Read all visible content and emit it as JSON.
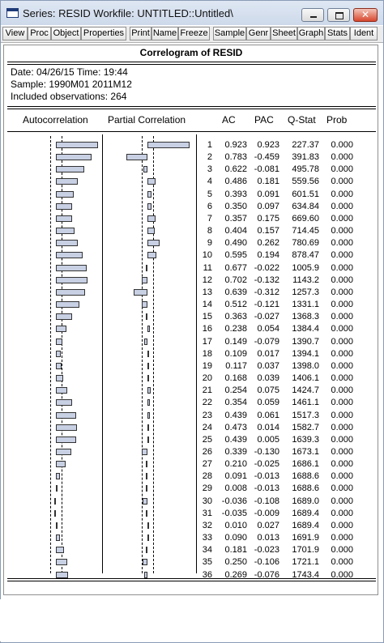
{
  "window": {
    "title": "Series: RESID    Workfile: UNTITLED::Untitled\\"
  },
  "toolbar": [
    "View",
    "Proc",
    "Object",
    "Properties",
    "Print",
    "Name",
    "Freeze",
    "Sample",
    "Genr",
    "Sheet",
    "Graph",
    "Stats",
    "Ident"
  ],
  "header": {
    "title": "Correlogram of RESID",
    "date_line": "Date: 04/26/15   Time: 19:44",
    "sample_line": "Sample: 1990M01 2011M12",
    "obs_line": "Included observations: 264"
  },
  "columns": {
    "ac_plot": "Autocorrelation",
    "pac_plot": "Partial Correlation",
    "ac": "AC",
    "pac": "PAC",
    "qstat": "Q-Stat",
    "prob": "Prob"
  },
  "rows": [
    {
      "lag": "1",
      "ac": "0.923",
      "pac": "0.923",
      "q": "227.37",
      "prob": "0.000"
    },
    {
      "lag": "2",
      "ac": "0.783",
      "pac": "-0.459",
      "q": "391.83",
      "prob": "0.000"
    },
    {
      "lag": "3",
      "ac": "0.622",
      "pac": "-0.081",
      "q": "495.78",
      "prob": "0.000"
    },
    {
      "lag": "4",
      "ac": "0.486",
      "pac": "0.181",
      "q": "559.56",
      "prob": "0.000"
    },
    {
      "lag": "5",
      "ac": "0.393",
      "pac": "0.091",
      "q": "601.51",
      "prob": "0.000"
    },
    {
      "lag": "6",
      "ac": "0.350",
      "pac": "0.097",
      "q": "634.84",
      "prob": "0.000"
    },
    {
      "lag": "7",
      "ac": "0.357",
      "pac": "0.175",
      "q": "669.60",
      "prob": "0.000"
    },
    {
      "lag": "8",
      "ac": "0.404",
      "pac": "0.157",
      "q": "714.45",
      "prob": "0.000"
    },
    {
      "lag": "9",
      "ac": "0.490",
      "pac": "0.262",
      "q": "780.69",
      "prob": "0.000"
    },
    {
      "lag": "10",
      "ac": "0.595",
      "pac": "0.194",
      "q": "878.47",
      "prob": "0.000"
    },
    {
      "lag": "11",
      "ac": "0.677",
      "pac": "-0.022",
      "q": "1005.9",
      "prob": "0.000"
    },
    {
      "lag": "12",
      "ac": "0.702",
      "pac": "-0.132",
      "q": "1143.2",
      "prob": "0.000"
    },
    {
      "lag": "13",
      "ac": "0.639",
      "pac": "-0.312",
      "q": "1257.3",
      "prob": "0.000"
    },
    {
      "lag": "14",
      "ac": "0.512",
      "pac": "-0.121",
      "q": "1331.1",
      "prob": "0.000"
    },
    {
      "lag": "15",
      "ac": "0.363",
      "pac": "-0.027",
      "q": "1368.3",
      "prob": "0.000"
    },
    {
      "lag": "16",
      "ac": "0.238",
      "pac": "0.054",
      "q": "1384.4",
      "prob": "0.000"
    },
    {
      "lag": "17",
      "ac": "0.149",
      "pac": "-0.079",
      "q": "1390.7",
      "prob": "0.000"
    },
    {
      "lag": "18",
      "ac": "0.109",
      "pac": "0.017",
      "q": "1394.1",
      "prob": "0.000"
    },
    {
      "lag": "19",
      "ac": "0.117",
      "pac": "0.037",
      "q": "1398.0",
      "prob": "0.000"
    },
    {
      "lag": "20",
      "ac": "0.168",
      "pac": "0.039",
      "q": "1406.1",
      "prob": "0.000"
    },
    {
      "lag": "21",
      "ac": "0.254",
      "pac": "0.075",
      "q": "1424.7",
      "prob": "0.000"
    },
    {
      "lag": "22",
      "ac": "0.354",
      "pac": "0.059",
      "q": "1461.1",
      "prob": "0.000"
    },
    {
      "lag": "23",
      "ac": "0.439",
      "pac": "0.061",
      "q": "1517.3",
      "prob": "0.000"
    },
    {
      "lag": "24",
      "ac": "0.473",
      "pac": "0.014",
      "q": "1582.7",
      "prob": "0.000"
    },
    {
      "lag": "25",
      "ac": "0.439",
      "pac": "0.005",
      "q": "1639.3",
      "prob": "0.000"
    },
    {
      "lag": "26",
      "ac": "0.339",
      "pac": "-0.130",
      "q": "1673.1",
      "prob": "0.000"
    },
    {
      "lag": "27",
      "ac": "0.210",
      "pac": "-0.025",
      "q": "1686.1",
      "prob": "0.000"
    },
    {
      "lag": "28",
      "ac": "0.091",
      "pac": "-0.013",
      "q": "1688.6",
      "prob": "0.000"
    },
    {
      "lag": "29",
      "ac": "0.008",
      "pac": "-0.013",
      "q": "1688.6",
      "prob": "0.000"
    },
    {
      "lag": "30",
      "ac": "-0.036",
      "pac": "-0.108",
      "q": "1689.0",
      "prob": "0.000"
    },
    {
      "lag": "31",
      "ac": "-0.035",
      "pac": "-0.009",
      "q": "1689.4",
      "prob": "0.000"
    },
    {
      "lag": "32",
      "ac": "0.010",
      "pac": "0.027",
      "q": "1689.4",
      "prob": "0.000"
    },
    {
      "lag": "33",
      "ac": "0.090",
      "pac": "0.013",
      "q": "1691.9",
      "prob": "0.000"
    },
    {
      "lag": "34",
      "ac": "0.181",
      "pac": "-0.023",
      "q": "1701.9",
      "prob": "0.000"
    },
    {
      "lag": "35",
      "ac": "0.250",
      "pac": "-0.106",
      "q": "1721.1",
      "prob": "0.000"
    },
    {
      "lag": "36",
      "ac": "0.269",
      "pac": "-0.076",
      "q": "1743.4",
      "prob": "0.000"
    }
  ]
}
